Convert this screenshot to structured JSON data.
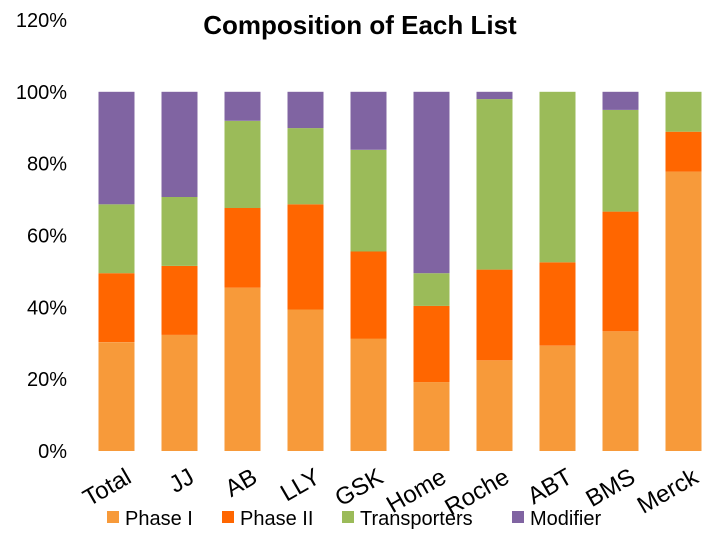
{
  "chart_data": {
    "type": "bar",
    "stacked": true,
    "percent": true,
    "title": "Composition of Each List",
    "categories": [
      "Total",
      "JJ",
      "AB",
      "LLY",
      "GSK",
      "Home",
      "Roche",
      "ABT",
      "BMS",
      "Merck"
    ],
    "series": [
      {
        "name": "Phase I",
        "color": "#f79a3a",
        "values": [
          30,
          32,
          45,
          39,
          31,
          19,
          25,
          29,
          33,
          77
        ]
      },
      {
        "name": "Phase II",
        "color": "#ff6600",
        "values": [
          19,
          19,
          22,
          29,
          24,
          21,
          25,
          23,
          33,
          11
        ]
      },
      {
        "name": "Transporters",
        "color": "#9bbb59",
        "values": [
          19,
          19,
          24,
          21,
          28,
          9,
          47,
          47,
          28,
          11
        ]
      },
      {
        "name": "Modifier",
        "color": "#8064a2",
        "values": [
          31,
          29,
          8,
          10,
          16,
          50,
          2,
          0,
          5,
          0
        ]
      }
    ],
    "y_ticks": [
      "0%",
      "20%",
      "40%",
      "60%",
      "80%",
      "100%",
      "120%"
    ],
    "ylim": [
      0,
      120
    ],
    "grid": false,
    "legend_position": "bottom"
  }
}
